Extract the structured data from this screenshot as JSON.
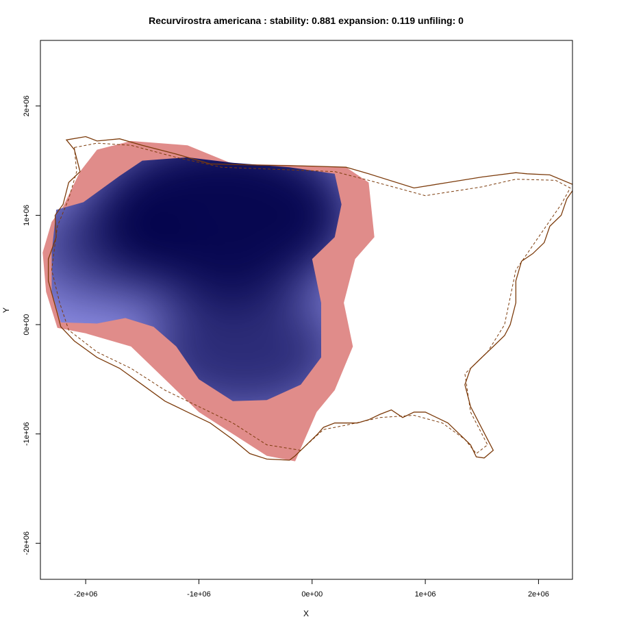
{
  "chart_data": {
    "type": "heatmap",
    "title": "Recurvirostra americana : stability: 0.881 expansion: 0.119 unfiling: 0",
    "xlabel": "X",
    "ylabel": "Y",
    "xlim": [
      -2400000,
      2300000
    ],
    "ylim": [
      -2330000,
      2600000
    ],
    "x_ticks": [
      {
        "value": -2000000,
        "label": "-2e+06"
      },
      {
        "value": -1000000,
        "label": "-1e+06"
      },
      {
        "value": 0,
        "label": "0e+00"
      },
      {
        "value": 1000000,
        "label": "1e+06"
      },
      {
        "value": 2000000,
        "label": "2e+06"
      }
    ],
    "y_ticks": [
      {
        "value": -2000000,
        "label": "-2e+06"
      },
      {
        "value": -1000000,
        "label": "-1e+06"
      },
      {
        "value": 0,
        "label": "0e+00"
      },
      {
        "value": 1000000,
        "label": "1e+06"
      },
      {
        "value": 2000000,
        "label": "2e+06"
      }
    ],
    "grid": false,
    "legend": "none",
    "colors": {
      "stability_dark": "#000048",
      "stability_light": "#8A8AE0",
      "expansion": "#E08C8A",
      "outline": "#7B3A0A"
    },
    "stability_peaks": [
      {
        "x": -800000,
        "y": 1000000,
        "weight": 1.0
      },
      {
        "x": -600000,
        "y": -250000,
        "weight": 0.55
      },
      {
        "x": -1800000,
        "y": 700000,
        "weight": 0.35
      }
    ],
    "stability_region": [
      [
        -2300000,
        660000
      ],
      [
        -2260000,
        1050000
      ],
      [
        -2020000,
        1120000
      ],
      [
        -1700000,
        1360000
      ],
      [
        -1500000,
        1500000
      ],
      [
        -1100000,
        1530000
      ],
      [
        -700000,
        1480000
      ],
      [
        -200000,
        1440000
      ],
      [
        200000,
        1380000
      ],
      [
        260000,
        1100000
      ],
      [
        200000,
        800000
      ],
      [
        0,
        600000
      ],
      [
        80000,
        200000
      ],
      [
        80000,
        -300000
      ],
      [
        -100000,
        -550000
      ],
      [
        -400000,
        -690000
      ],
      [
        -700000,
        -700000
      ],
      [
        -1000000,
        -500000
      ],
      [
        -1200000,
        -200000
      ],
      [
        -1400000,
        -20000
      ],
      [
        -1650000,
        60000
      ],
      [
        -1900000,
        10000
      ],
      [
        -2220000,
        20000
      ],
      [
        -2300000,
        300000
      ]
    ],
    "expansion_region": [
      [
        -2380000,
        660000
      ],
      [
        -2300000,
        940000
      ],
      [
        -2200000,
        1080000
      ],
      [
        -2050000,
        1400000
      ],
      [
        -1900000,
        1600000
      ],
      [
        -1600000,
        1680000
      ],
      [
        -1100000,
        1640000
      ],
      [
        -700000,
        1470000
      ],
      [
        -200000,
        1460000
      ],
      [
        300000,
        1440000
      ],
      [
        500000,
        1300000
      ],
      [
        550000,
        800000
      ],
      [
        380000,
        600000
      ],
      [
        280000,
        200000
      ],
      [
        360000,
        -200000
      ],
      [
        200000,
        -600000
      ],
      [
        40000,
        -800000
      ],
      [
        -150000,
        -1250000
      ],
      [
        -400000,
        -1200000
      ],
      [
        -700000,
        -1000000
      ],
      [
        -1000000,
        -800000
      ],
      [
        -1300000,
        -500000
      ],
      [
        -1600000,
        -200000
      ],
      [
        -2000000,
        -80000
      ],
      [
        -2250000,
        -30000
      ],
      [
        -2350000,
        300000
      ]
    ],
    "outline_solid": [
      [
        -2170000,
        1690000
      ],
      [
        -2000000,
        1720000
      ],
      [
        -1900000,
        1680000
      ],
      [
        -1700000,
        1700000
      ],
      [
        -1500000,
        1640000
      ],
      [
        -1200000,
        1560000
      ],
      [
        -900000,
        1470000
      ],
      [
        -500000,
        1460000
      ],
      [
        0,
        1450000
      ],
      [
        300000,
        1440000
      ],
      [
        500000,
        1380000
      ],
      [
        900000,
        1250000
      ],
      [
        1200000,
        1300000
      ],
      [
        1500000,
        1350000
      ],
      [
        1800000,
        1390000
      ],
      [
        1900000,
        1380000
      ],
      [
        2100000,
        1370000
      ],
      [
        2330000,
        1270000
      ],
      [
        2250000,
        1150000
      ],
      [
        2200000,
        1000000
      ],
      [
        2100000,
        900000
      ],
      [
        2050000,
        750000
      ],
      [
        1950000,
        650000
      ],
      [
        1850000,
        580000
      ],
      [
        1800000,
        400000
      ],
      [
        1800000,
        200000
      ],
      [
        1750000,
        0
      ],
      [
        1700000,
        -100000
      ],
      [
        1600000,
        -200000
      ],
      [
        1500000,
        -300000
      ],
      [
        1400000,
        -400000
      ],
      [
        1350000,
        -550000
      ],
      [
        1400000,
        -750000
      ],
      [
        1550000,
        -1050000
      ],
      [
        1600000,
        -1150000
      ],
      [
        1520000,
        -1220000
      ],
      [
        1450000,
        -1210000
      ],
      [
        1400000,
        -1100000
      ],
      [
        1300000,
        -1000000
      ],
      [
        1200000,
        -900000
      ],
      [
        1100000,
        -850000
      ],
      [
        1000000,
        -800000
      ],
      [
        900000,
        -800000
      ],
      [
        800000,
        -850000
      ],
      [
        700000,
        -780000
      ],
      [
        600000,
        -820000
      ],
      [
        500000,
        -870000
      ],
      [
        400000,
        -900000
      ],
      [
        200000,
        -900000
      ],
      [
        100000,
        -940000
      ],
      [
        50000,
        -1000000
      ],
      [
        -150000,
        -1200000
      ],
      [
        -200000,
        -1240000
      ],
      [
        -400000,
        -1230000
      ],
      [
        -550000,
        -1180000
      ],
      [
        -700000,
        -1050000
      ],
      [
        -900000,
        -900000
      ],
      [
        -1100000,
        -800000
      ],
      [
        -1300000,
        -700000
      ],
      [
        -1500000,
        -550000
      ],
      [
        -1700000,
        -400000
      ],
      [
        -1900000,
        -300000
      ],
      [
        -2100000,
        -150000
      ],
      [
        -2220000,
        -20000
      ],
      [
        -2250000,
        100000
      ],
      [
        -2330000,
        400000
      ],
      [
        -2330000,
        600000
      ],
      [
        -2260000,
        800000
      ],
      [
        -2270000,
        1000000
      ],
      [
        -2200000,
        1100000
      ],
      [
        -2150000,
        1300000
      ],
      [
        -2050000,
        1400000
      ],
      [
        -2100000,
        1600000
      ],
      [
        -2170000,
        1690000
      ]
    ],
    "outline_dashed": [
      [
        -2100000,
        1620000
      ],
      [
        -1900000,
        1660000
      ],
      [
        -1600000,
        1640000
      ],
      [
        -1200000,
        1530000
      ],
      [
        -800000,
        1440000
      ],
      [
        -300000,
        1420000
      ],
      [
        200000,
        1400000
      ],
      [
        500000,
        1320000
      ],
      [
        1000000,
        1180000
      ],
      [
        1500000,
        1260000
      ],
      [
        1800000,
        1330000
      ],
      [
        2150000,
        1320000
      ],
      [
        2280000,
        1250000
      ],
      [
        2200000,
        1100000
      ],
      [
        2100000,
        950000
      ],
      [
        2000000,
        800000
      ],
      [
        1900000,
        650000
      ],
      [
        1800000,
        500000
      ],
      [
        1750000,
        250000
      ],
      [
        1700000,
        0
      ],
      [
        1550000,
        -250000
      ],
      [
        1350000,
        -450000
      ],
      [
        1400000,
        -800000
      ],
      [
        1550000,
        -1100000
      ],
      [
        1450000,
        -1180000
      ],
      [
        1350000,
        -1050000
      ],
      [
        1150000,
        -900000
      ],
      [
        900000,
        -830000
      ],
      [
        600000,
        -850000
      ],
      [
        300000,
        -920000
      ],
      [
        100000,
        -960000
      ],
      [
        -100000,
        -1150000
      ],
      [
        -400000,
        -1100000
      ],
      [
        -700000,
        -900000
      ],
      [
        -1000000,
        -750000
      ],
      [
        -1300000,
        -600000
      ],
      [
        -1600000,
        -400000
      ],
      [
        -1900000,
        -250000
      ],
      [
        -2150000,
        -50000
      ],
      [
        -2230000,
        200000
      ],
      [
        -2300000,
        500000
      ],
      [
        -2250000,
        900000
      ],
      [
        -2150000,
        1150000
      ],
      [
        -2080000,
        1400000
      ],
      [
        -2100000,
        1620000
      ]
    ]
  }
}
